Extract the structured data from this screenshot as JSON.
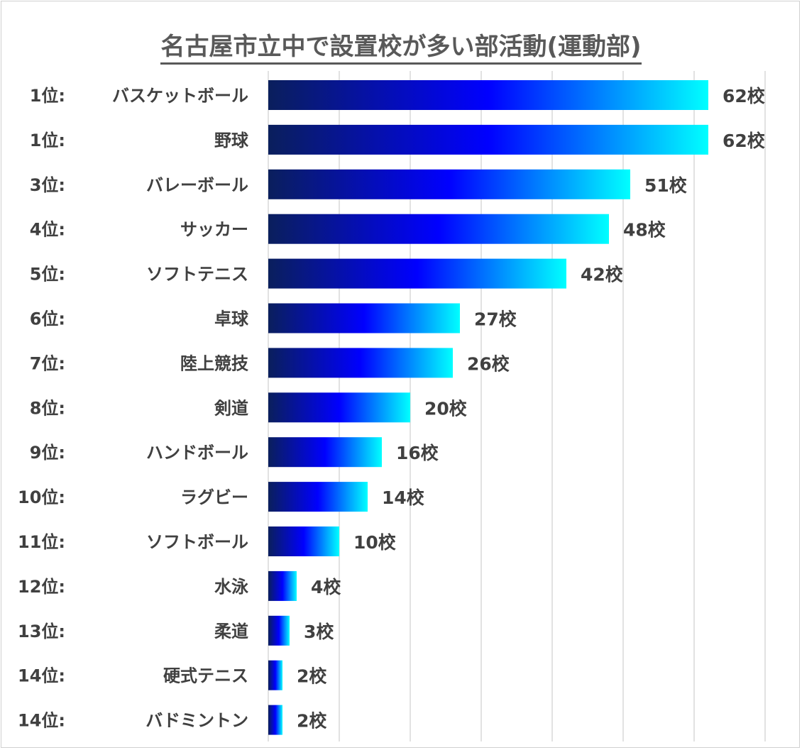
{
  "chart_data": {
    "type": "bar",
    "orientation": "horizontal",
    "title": "名古屋市立中で設置校が多い部活動(運動部)",
    "xlabel": "",
    "ylabel": "",
    "xlim": [
      0,
      70
    ],
    "grid": true,
    "value_suffix": "校",
    "ranks": [
      "1位:",
      "1位:",
      "3位:",
      "4位:",
      "5位:",
      "6位:",
      "7位:",
      "8位:",
      "9位:",
      "10位:",
      "11位:",
      "12位:",
      "13位:",
      "14位:",
      "14位:"
    ],
    "categories": [
      "バスケットボール",
      "野球",
      "バレーボール",
      "サッカー",
      "ソフトテニス",
      "卓球",
      "陸上競技",
      "剣道",
      "ハンドボール",
      "ラグビー",
      "ソフトボール",
      "水泳",
      "柔道",
      "硬式テニス",
      "バドミントン"
    ],
    "values": [
      62,
      62,
      51,
      48,
      42,
      27,
      26,
      20,
      16,
      14,
      10,
      4,
      3,
      2,
      2
    ],
    "gradient_colors": [
      "#0a1f5c",
      "#0000ff",
      "#00ffff"
    ]
  }
}
